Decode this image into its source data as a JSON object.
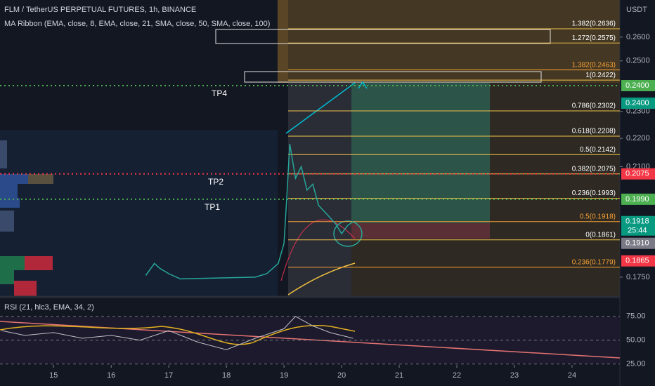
{
  "chart_data": [
    {
      "type": "line",
      "title": "FLM / TetherUS PERPETUAL FUTURES, 1h, BINANCE",
      "subtitle": "MA Ribbon (EMA, close, 8, EMA, close, 21, SMA, close, 50, SMA, close, 100)",
      "axis_label": "USDT",
      "log_scale": true,
      "color": "#26a69a",
      "xlim": [
        14.07,
        24.83
      ],
      "xticks": [
        15,
        16,
        17,
        18,
        19,
        20,
        21,
        22,
        23,
        24
      ],
      "ylim": [
        0.1696,
        0.2764
      ],
      "yticks": [
        {
          "value": 0.26,
          "label": "0.2600"
        },
        {
          "value": 0.25,
          "label": "0.2500"
        },
        {
          "value": 0.23,
          "label": "0.2300"
        },
        {
          "value": 0.22,
          "label": "0.2200"
        },
        {
          "value": 0.21,
          "label": "0.2100"
        },
        {
          "value": 0.175,
          "label": "0.1750"
        }
      ],
      "x": [
        16.6,
        16.75,
        16.85,
        17.0,
        17.2,
        18.5,
        18.7,
        18.9,
        19.0,
        19.05,
        19.1,
        19.2,
        19.3,
        19.4,
        19.5,
        19.6,
        19.7,
        19.8,
        19.9,
        20.0,
        20.1,
        20.2
      ],
      "values": [
        0.1755,
        0.179,
        0.1775,
        0.176,
        0.1745,
        0.175,
        0.176,
        0.179,
        0.185,
        0.2,
        0.218,
        0.206,
        0.21,
        0.202,
        0.204,
        0.197,
        0.195,
        0.193,
        0.191,
        0.188,
        0.1905,
        0.1918
      ],
      "fib_levels": [
        {
          "value": 0.2636,
          "label": "1.382(0.2636)",
          "color": "#f0c24a"
        },
        {
          "value": 0.2575,
          "label": "1.272(0.2575)",
          "color": "#f0c24a"
        },
        {
          "value": 0.2463,
          "label": "1.382(0.2463)",
          "color": "#f7a035"
        },
        {
          "value": 0.2422,
          "label": "1(0.2422)",
          "color": "#f0c24a"
        },
        {
          "value": 0.2302,
          "label": "0.786(0.2302)",
          "color": "#f0c24a"
        },
        {
          "value": 0.2208,
          "label": "0.618(0.2208)",
          "color": "#f0c24a"
        },
        {
          "value": 0.2142,
          "label": "0.5(0.2142)",
          "color": "#f0c24a"
        },
        {
          "value": 0.2075,
          "label": "0.382(0.2075)",
          "color": "#f0c24a"
        },
        {
          "value": 0.1993,
          "label": "0.236(0.1993)",
          "color": "#f0c24a"
        },
        {
          "value": 0.1918,
          "label": "0.5(0.1918)",
          "color": "#f7a035"
        },
        {
          "value": 0.1861,
          "label": "0(0.1861)",
          "color": "#f0c24a"
        },
        {
          "value": 0.1779,
          "label": "0.236(0.1779)",
          "color": "#f7a035"
        }
      ],
      "targets": [
        {
          "text": "TP4",
          "value": 0.24,
          "color": "#4caf50"
        },
        {
          "text": "TP2",
          "value": 0.2075,
          "color": "#f23645"
        },
        {
          "text": "TP1",
          "value": 0.199,
          "color": "#4caf50"
        }
      ],
      "price_labels": [
        {
          "value": 0.24,
          "label": "0.2400",
          "color": "#4caf50"
        },
        {
          "value": 0.24,
          "label": "0.2400",
          "color": "#089981"
        },
        {
          "value": 0.2075,
          "label": "0.2075",
          "color": "#f23645"
        },
        {
          "value": 0.199,
          "label": "0.1990",
          "color": "#4caf50"
        },
        {
          "value": 0.1918,
          "label": "0.1918",
          "color": "#089981",
          "countdown": "25:44"
        },
        {
          "value": 0.191,
          "label": "0.1910",
          "color": "#787b86"
        },
        {
          "value": 0.1865,
          "label": "0.1865",
          "color": "#f23645"
        }
      ]
    },
    {
      "type": "line",
      "title": "RSI (21, hlc3, EMA, 34, 2)",
      "color": "#c0c0c8",
      "xlim": [
        14.07,
        24.83
      ],
      "ylim": [
        24,
        94
      ],
      "yticks": [
        {
          "value": 75,
          "label": "75.00"
        },
        {
          "value": 50,
          "label": "50.00"
        },
        {
          "value": 25,
          "label": "25.00"
        }
      ],
      "x": [
        14.1,
        14.5,
        15.0,
        15.5,
        16.0,
        16.5,
        17.0,
        17.5,
        18.0,
        18.5,
        19.0,
        19.2,
        19.5,
        19.8,
        20.2
      ],
      "values": [
        60,
        55,
        58,
        52,
        55,
        50,
        60,
        48,
        40,
        52,
        62,
        75,
        65,
        58,
        52
      ]
    }
  ]
}
